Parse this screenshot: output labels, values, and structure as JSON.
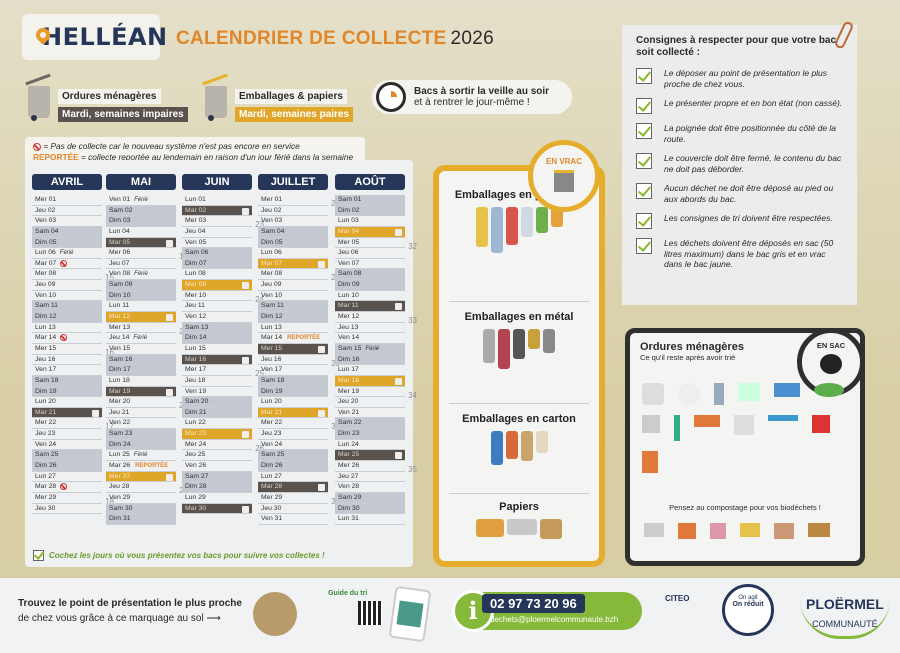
{
  "header": {
    "town": "HELLÉAN",
    "title": "CALENDRIER DE COLLECTE",
    "year": "2026"
  },
  "bins": [
    {
      "name": "Ordures ménagères",
      "schedule": "Mardi, semaines impaires",
      "color": "#5a534d"
    },
    {
      "name": "Emballages & papiers",
      "schedule": "Mardi, semaines paires",
      "color": "#e0a62a"
    }
  ],
  "reminder": {
    "line1": "Bacs à sortir la veille au soir",
    "line2": "et à rentrer le jour-même !"
  },
  "legend": {
    "no_collection": "= Pas de collecte car le nouveau système n'est pas encore en service",
    "reported_word": "REPORTÉE",
    "reported_text": " = collecte reportée au lendemain en raison d'un jour férié dans la semaine"
  },
  "labels": {
    "ferie": "Férié",
    "reportee": "REPORTÉE"
  },
  "months": [
    {
      "name": "AVRIL",
      "days": [
        "Mer 01",
        "Jeu 02",
        "Ven 03",
        "Sam 04",
        "Dim 05",
        "Lun 06",
        "Mar 07",
        "Mer 08",
        "Jeu 09",
        "Ven 10",
        "Sam 11",
        "Dim 12",
        "Lun 13",
        "Mar 14",
        "Mer 15",
        "Jeu 16",
        "Ven 17",
        "Sam 18",
        "Dim 19",
        "Lun 20",
        "Mar 21",
        "Mer 22",
        "Jeu 23",
        "Ven 24",
        "Sam 25",
        "Dim 26",
        "Lun 27",
        "Mar 28",
        "Mer 29",
        "Jeu 30"
      ],
      "tags": {
        "Lun 06": "ferie",
        "Mar 07": "none",
        "Mar 14": "none",
        "Mar 21": "om",
        "Mar 28": "none"
      },
      "weeks": {
        "Jeu 02": "14",
        "Mer 08": "15",
        "Mer 15": "16",
        "Mer 22": "17",
        "Mer 29": "18"
      }
    },
    {
      "name": "MAI",
      "days": [
        "Ven 01",
        "Sam 02",
        "Dim 03",
        "Lun 04",
        "Mar 05",
        "Mer 06",
        "Jeu 07",
        "Ven 08",
        "Sam 09",
        "Dim 10",
        "Lun 11",
        "Mar 12",
        "Mer 13",
        "Jeu 14",
        "Ven 15",
        "Sam 16",
        "Dim 17",
        "Lun 18",
        "Mar 19",
        "Mer 20",
        "Jeu 21",
        "Ven 22",
        "Sam 23",
        "Dim 24",
        "Lun 25",
        "Mar 26",
        "Mer 27",
        "Jeu 28",
        "Ven 29",
        "Sam 30",
        "Dim 31"
      ],
      "tags": {
        "Ven 01": "ferie",
        "Mar 05": "om",
        "Ven 08": "ferie",
        "Mar 12": "emb",
        "Jeu 14": "ferie",
        "Mar 19": "om",
        "Lun 25": "ferie",
        "Mar 26": "reportee",
        "Mer 27": "emb"
      },
      "weeks": {
        "Mer 06": "19",
        "Mer 13": "20",
        "Mer 20": "21",
        "Jeu 28": "22"
      }
    },
    {
      "name": "JUIN",
      "days": [
        "Lun 01",
        "Mar 02",
        "Mer 03",
        "Jeu 04",
        "Ven 05",
        "Sam 06",
        "Dim 07",
        "Lun 08",
        "Mar 09",
        "Mer 10",
        "Jeu 11",
        "Ven 12",
        "Sam 13",
        "Dim 14",
        "Lun 15",
        "Mar 16",
        "Mer 17",
        "Jeu 18",
        "Ven 19",
        "Sam 20",
        "Dim 21",
        "Lun 22",
        "Mar 23",
        "Mer 24",
        "Jeu 25",
        "Ven 26",
        "Sam 27",
        "Dim 28",
        "Lun 29",
        "Mar 30"
      ],
      "tags": {
        "Mar 02": "om",
        "Mar 09": "emb",
        "Mar 16": "om",
        "Mar 23": "emb",
        "Mar 30": "om"
      },
      "weeks": {
        "Mer 03": "23",
        "Mer 10": "24",
        "Mer 17": "25",
        "Mer 24": "26"
      }
    },
    {
      "name": "JUILLET",
      "days": [
        "Mer 01",
        "Jeu 02",
        "Ven 03",
        "Sam 04",
        "Dim 05",
        "Lun 06",
        "Mar 07",
        "Mer 08",
        "Jeu 09",
        "Ven 10",
        "Sam 11",
        "Dim 12",
        "Lun 13",
        "Mar 14",
        "Mer 15",
        "Jeu 16",
        "Ven 17",
        "Sam 18",
        "Dim 19",
        "Lun 20",
        "Mar 21",
        "Mer 22",
        "Jeu 23",
        "Ven 24",
        "Sam 25",
        "Dim 26",
        "Lun 27",
        "Mar 28",
        "Mer 29",
        "Jeu 30",
        "Ven 31"
      ],
      "tags": {
        "Mar 07": "emb",
        "Mar 14": "reportee",
        "Mer 15": "om",
        "Mar 21": "emb",
        "Mar 28": "om"
      },
      "weeks": {
        "Mer 01": "27",
        "Mer 08": "28",
        "Jeu 16": "29",
        "Mer 22": "30",
        "Mer 29": "31"
      }
    },
    {
      "name": "AOÛT",
      "days": [
        "Sam 01",
        "Dim 02",
        "Lun 03",
        "Mar 04",
        "Mer 05",
        "Jeu 06",
        "Ven 07",
        "Sam 08",
        "Dim 09",
        "Lun 10",
        "Mar 11",
        "Mer 12",
        "Jeu 13",
        "Ven 14",
        "Sam 15",
        "Dim 16",
        "Lun 17",
        "Mar 18",
        "Mer 19",
        "Jeu 20",
        "Ven 21",
        "Sam 22",
        "Dim 23",
        "Lun 24",
        "Mar 25",
        "Mer 26",
        "Jeu 27",
        "Ven 28",
        "Sam 29",
        "Dim 30",
        "Lun 31"
      ],
      "tags": {
        "Mar 04": "emb",
        "Mar 11": "om",
        "Sam 15": "ferie",
        "Mar 18": "emb",
        "Mar 25": "om"
      },
      "weeks": {
        "Mer 05": "32",
        "Mer 12": "33",
        "Mer 19": "34",
        "Mer 26": "35"
      }
    }
  ],
  "calendar_footer": "Cochez les jours où vous présentez vos bacs pour suivre vos collectes !",
  "sorting": {
    "badge": "EN VRAC",
    "sections": [
      "Emballages en plastique",
      "Emballages en métal",
      "Emballages en carton",
      "Papiers"
    ]
  },
  "rules": {
    "title": "Consignes à respecter pour que votre bac soit collecté :",
    "items": [
      "Le déposer au point de présentation le plus proche de chez vous.",
      "Le présenter propre et en bon état (non cassé).",
      "La poignée doit être positionnée du côté de la route.",
      "Le couvercle doit être fermé, le contenu du bac ne doit pas déborder.",
      "Aucun déchet ne doit être déposé au pied ou aux abords du bac.",
      "Les consignes de tri doivent être respectées.",
      "Les déchets doivent être déposés en sac (50 litres maximum) dans le bac gris et en vrac dans le bac jaune."
    ]
  },
  "household": {
    "title": "Ordures ménagères",
    "subtitle": "Ce qu'il reste après avoir trié",
    "badge": "EN SAC",
    "compost": "Pensez au compostage pour vos biodéchets !"
  },
  "footer": {
    "line1": "Trouvez le point de présentation le plus proche",
    "line2": "de chez vous grâce à ce marquage au sol",
    "guide": "Guide du tri",
    "phone": "02 97 73 20 96",
    "email": "dechets@ploermelcommunaute.bzh",
    "reduce_top": "On agit",
    "reduce": "On réduit",
    "brand": "PLOËRMEL",
    "brand_sub": "COMMUNAUTÉ",
    "citeo": "CITEO"
  }
}
